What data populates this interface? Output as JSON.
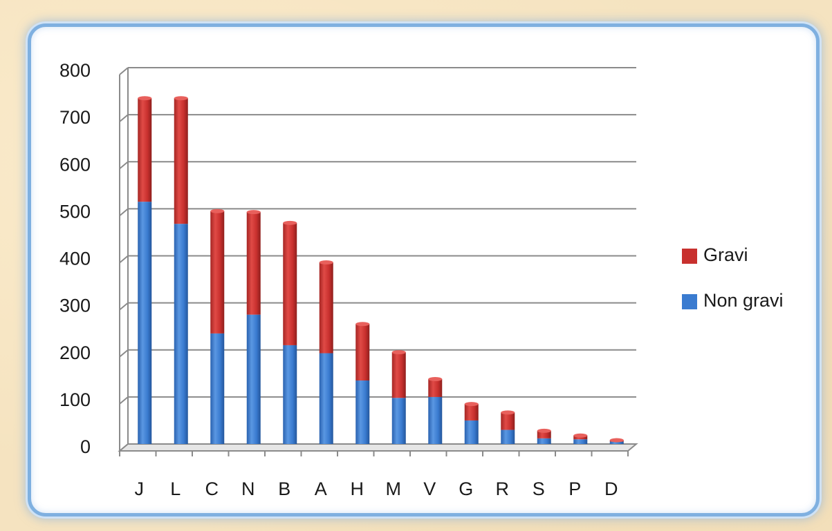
{
  "colors": {
    "background": "#f5e3c0",
    "frame_border": "#7fb0e0",
    "gravi": "#c8302e",
    "non_gravi": "#3a7bd0",
    "gridline": "#8a8a8a"
  },
  "chart_data": {
    "type": "bar",
    "stacked": true,
    "style": "3d-cylinder",
    "title": "",
    "xlabel": "",
    "ylabel": "",
    "ylim": [
      0,
      800
    ],
    "yticks": [
      0,
      100,
      200,
      300,
      400,
      500,
      600,
      700,
      800
    ],
    "grid": true,
    "legend_position": "right",
    "categories": [
      "J",
      "L",
      "C",
      "N",
      "B",
      "A",
      "H",
      "M",
      "V",
      "G",
      "R",
      "S",
      "P",
      "D"
    ],
    "series": [
      {
        "name": "Non gravi",
        "color": "#3a7bd0",
        "values": [
          515,
          468,
          235,
          275,
          210,
          193,
          135,
          98,
          100,
          50,
          30,
          12,
          10,
          5
        ]
      },
      {
        "name": "Gravi",
        "color": "#c8302e",
        "values": [
          220,
          267,
          260,
          218,
          260,
          193,
          120,
          97,
          38,
          35,
          37,
          16,
          8,
          3
        ]
      }
    ],
    "legend": [
      {
        "name": "Gravi",
        "color": "#c8302e"
      },
      {
        "name": "Non gravi",
        "color": "#3a7bd0"
      }
    ]
  }
}
